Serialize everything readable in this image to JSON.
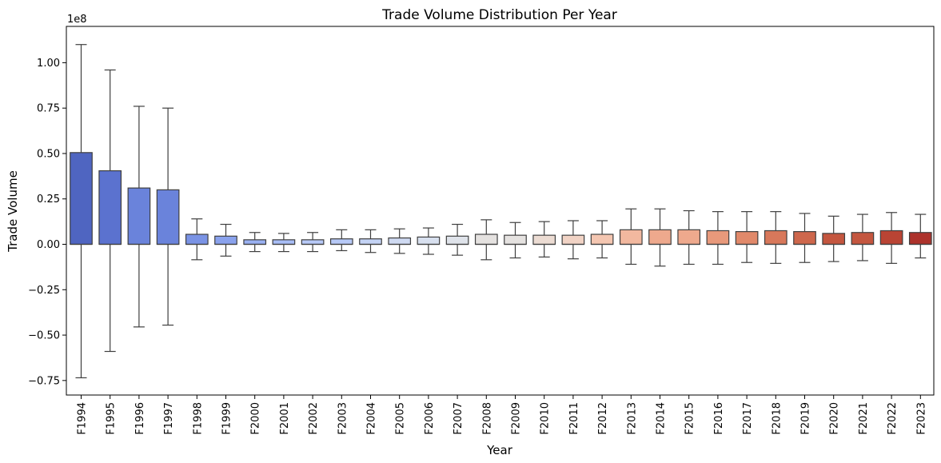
{
  "chart_data": {
    "type": "box",
    "title": "Trade Volume Distribution Per Year",
    "xlabel": "Year",
    "ylabel": "Trade Volume",
    "y_scale_label": "1e8",
    "ylim": [
      -0.83,
      1.2
    ],
    "yticks": [
      -0.75,
      -0.5,
      -0.25,
      0.0,
      0.25,
      0.5,
      0.75,
      1.0
    ],
    "ytick_labels": [
      "−0.75",
      "−0.50",
      "−0.25",
      "0.00",
      "0.25",
      "0.50",
      "0.75",
      "1.00"
    ],
    "units_note": "values in units of 1e8",
    "grid": false,
    "legend": "none",
    "categories": [
      "F1994",
      "F1995",
      "F1996",
      "F1997",
      "F1998",
      "F1999",
      "F2000",
      "F2001",
      "F2002",
      "F2003",
      "F2004",
      "F2005",
      "F2006",
      "F2007",
      "F2008",
      "F2009",
      "F2010",
      "F2011",
      "F2012",
      "F2013",
      "F2014",
      "F2015",
      "F2016",
      "F2017",
      "F2018",
      "F2019",
      "F2020",
      "F2021",
      "F2022",
      "F2023"
    ],
    "boxes": [
      {
        "whisker_low": -0.735,
        "q1": 0.0,
        "median": 0.0,
        "q3": 0.505,
        "whisker_high": 1.1
      },
      {
        "whisker_low": -0.59,
        "q1": 0.0,
        "median": 0.0,
        "q3": 0.405,
        "whisker_high": 0.96
      },
      {
        "whisker_low": -0.455,
        "q1": 0.0,
        "median": 0.0,
        "q3": 0.31,
        "whisker_high": 0.76
      },
      {
        "whisker_low": -0.445,
        "q1": 0.0,
        "median": 0.0,
        "q3": 0.3,
        "whisker_high": 0.75
      },
      {
        "whisker_low": -0.085,
        "q1": 0.0,
        "median": 0.0,
        "q3": 0.055,
        "whisker_high": 0.14
      },
      {
        "whisker_low": -0.065,
        "q1": 0.0,
        "median": 0.0,
        "q3": 0.045,
        "whisker_high": 0.11
      },
      {
        "whisker_low": -0.04,
        "q1": 0.0,
        "median": 0.0,
        "q3": 0.025,
        "whisker_high": 0.065
      },
      {
        "whisker_low": -0.04,
        "q1": 0.0,
        "median": 0.0,
        "q3": 0.025,
        "whisker_high": 0.06
      },
      {
        "whisker_low": -0.04,
        "q1": 0.0,
        "median": 0.0,
        "q3": 0.025,
        "whisker_high": 0.065
      },
      {
        "whisker_low": -0.035,
        "q1": 0.0,
        "median": 0.0,
        "q3": 0.03,
        "whisker_high": 0.08
      },
      {
        "whisker_low": -0.045,
        "q1": 0.0,
        "median": 0.0,
        "q3": 0.03,
        "whisker_high": 0.08
      },
      {
        "whisker_low": -0.05,
        "q1": 0.0,
        "median": 0.0,
        "q3": 0.035,
        "whisker_high": 0.085
      },
      {
        "whisker_low": -0.055,
        "q1": 0.0,
        "median": 0.0,
        "q3": 0.04,
        "whisker_high": 0.09
      },
      {
        "whisker_low": -0.06,
        "q1": 0.0,
        "median": 0.0,
        "q3": 0.045,
        "whisker_high": 0.11
      },
      {
        "whisker_low": -0.085,
        "q1": 0.0,
        "median": 0.0,
        "q3": 0.055,
        "whisker_high": 0.135
      },
      {
        "whisker_low": -0.075,
        "q1": 0.0,
        "median": 0.0,
        "q3": 0.05,
        "whisker_high": 0.12
      },
      {
        "whisker_low": -0.07,
        "q1": 0.0,
        "median": 0.0,
        "q3": 0.05,
        "whisker_high": 0.125
      },
      {
        "whisker_low": -0.08,
        "q1": 0.0,
        "median": 0.0,
        "q3": 0.05,
        "whisker_high": 0.13
      },
      {
        "whisker_low": -0.075,
        "q1": 0.0,
        "median": 0.0,
        "q3": 0.055,
        "whisker_high": 0.13
      },
      {
        "whisker_low": -0.11,
        "q1": 0.0,
        "median": 0.0,
        "q3": 0.08,
        "whisker_high": 0.195
      },
      {
        "whisker_low": -0.12,
        "q1": 0.0,
        "median": 0.0,
        "q3": 0.08,
        "whisker_high": 0.195
      },
      {
        "whisker_low": -0.11,
        "q1": 0.0,
        "median": 0.0,
        "q3": 0.08,
        "whisker_high": 0.185
      },
      {
        "whisker_low": -0.11,
        "q1": 0.0,
        "median": 0.0,
        "q3": 0.075,
        "whisker_high": 0.18
      },
      {
        "whisker_low": -0.1,
        "q1": 0.0,
        "median": 0.0,
        "q3": 0.07,
        "whisker_high": 0.18
      },
      {
        "whisker_low": -0.105,
        "q1": 0.0,
        "median": 0.0,
        "q3": 0.075,
        "whisker_high": 0.18
      },
      {
        "whisker_low": -0.1,
        "q1": 0.0,
        "median": 0.0,
        "q3": 0.07,
        "whisker_high": 0.17
      },
      {
        "whisker_low": -0.095,
        "q1": 0.0,
        "median": 0.0,
        "q3": 0.06,
        "whisker_high": 0.155
      },
      {
        "whisker_low": -0.09,
        "q1": 0.0,
        "median": 0.0,
        "q3": 0.065,
        "whisker_high": 0.165
      },
      {
        "whisker_low": -0.105,
        "q1": 0.0,
        "median": 0.0,
        "q3": 0.075,
        "whisker_high": 0.175
      },
      {
        "whisker_low": -0.075,
        "q1": 0.0,
        "median": 0.0,
        "q3": 0.065,
        "whisker_high": 0.165
      }
    ],
    "colors": [
      "#4f65c1",
      "#5b72cf",
      "#6a83db",
      "#7a93e5",
      "#8aa2ed",
      "#9ab1f2",
      "#a8bdf6",
      "#b7c9f7",
      "#c4d3f5",
      "#cfdaf2",
      "#d8e0ef",
      "#dfe3ea",
      "#e5e2e0",
      "#ecdcd3",
      "#f1d3c5",
      "#f4c6b1",
      "#f2b89f",
      "#eea98d",
      "#e8997b",
      "#e1896a",
      "#d8785b",
      "#ce674c",
      "#c4563f",
      "#b94434",
      "#ad322b"
    ],
    "edge_color": "#3f3f3f"
  }
}
